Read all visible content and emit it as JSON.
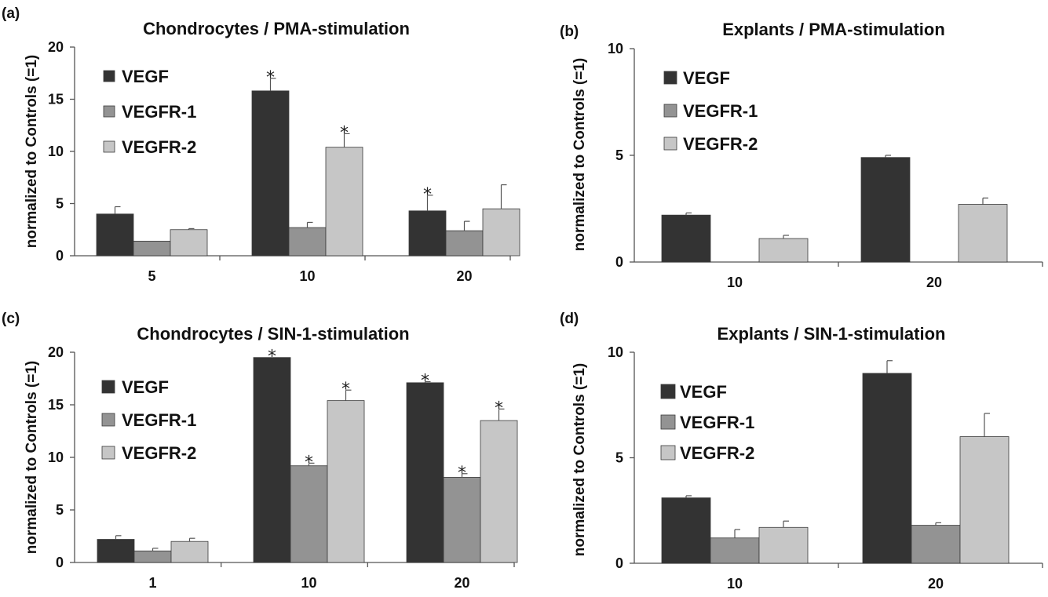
{
  "colors": {
    "VEGF": "#333333",
    "VEGFR-1": "#939393",
    "VEGFR-2": "#c6c6c6",
    "axis": "#555555"
  },
  "chart_data": [
    {
      "type": "bar",
      "panel_label": "(a)",
      "title": "Chondrocytes / PMA-stimulation",
      "xlabel": "",
      "ylabel": "normalized to Controls (=1)",
      "ylim": [
        0,
        20
      ],
      "yticks": [
        0,
        5,
        10,
        15,
        20
      ],
      "categories": [
        "5",
        "10",
        "20"
      ],
      "legend": [
        "VEGF",
        "VEGFR-1",
        "VEGFR-2"
      ],
      "legend_position": "top-left",
      "series": [
        {
          "name": "VEGF",
          "values": [
            4.0,
            15.8,
            4.3
          ],
          "errors": [
            0.7,
            1.2,
            1.5
          ],
          "significant": [
            false,
            true,
            true
          ]
        },
        {
          "name": "VEGFR-1",
          "values": [
            1.4,
            2.7,
            2.4
          ],
          "errors": [
            0.0,
            0.5,
            0.9
          ],
          "significant": [
            false,
            false,
            false
          ]
        },
        {
          "name": "VEGFR-2",
          "values": [
            2.5,
            10.4,
            4.5
          ],
          "errors": [
            0.1,
            1.3,
            2.3
          ],
          "significant": [
            false,
            true,
            false
          ]
        }
      ]
    },
    {
      "type": "bar",
      "panel_label": "(b)",
      "title": "Explants / PMA-stimulation",
      "xlabel": "",
      "ylabel": "normalized to Controls (=1)",
      "ylim": [
        0,
        10
      ],
      "yticks": [
        0,
        5,
        10
      ],
      "categories": [
        "10",
        "20"
      ],
      "legend": [
        "VEGF",
        "VEGFR-1",
        "VEGFR-2"
      ],
      "legend_position": "top-left",
      "series": [
        {
          "name": "VEGF",
          "values": [
            2.2,
            4.9
          ],
          "errors": [
            0.1,
            0.1
          ],
          "significant": [
            false,
            false
          ]
        },
        {
          "name": "VEGFR-1",
          "values": [
            0,
            0
          ],
          "errors": [
            0,
            0
          ],
          "significant": [
            false,
            false
          ]
        },
        {
          "name": "VEGFR-2",
          "values": [
            1.1,
            2.7
          ],
          "errors": [
            0.15,
            0.3
          ],
          "significant": [
            false,
            false
          ]
        }
      ]
    },
    {
      "type": "bar",
      "panel_label": "(c)",
      "title": "Chondrocytes / SIN-1-stimulation",
      "xlabel": "",
      "ylabel": "normalized to Controls (=1)",
      "ylim": [
        0,
        20
      ],
      "yticks": [
        0,
        5,
        10,
        15,
        20
      ],
      "categories": [
        "1",
        "10",
        "20"
      ],
      "legend": [
        "VEGF",
        "VEGFR-1",
        "VEGFR-2"
      ],
      "legend_position": "top-left",
      "series": [
        {
          "name": "VEGF",
          "values": [
            2.2,
            19.5,
            17.1
          ],
          "errors": [
            0.35,
            0.0,
            0.1
          ],
          "significant": [
            false,
            true,
            true
          ]
        },
        {
          "name": "VEGFR-1",
          "values": [
            1.1,
            9.2,
            8.1
          ],
          "errors": [
            0.25,
            0.25,
            0.35
          ],
          "significant": [
            false,
            true,
            true
          ]
        },
        {
          "name": "VEGFR-2",
          "values": [
            2.0,
            15.4,
            13.5
          ],
          "errors": [
            0.3,
            1.0,
            1.1
          ],
          "significant": [
            false,
            true,
            true
          ]
        }
      ]
    },
    {
      "type": "bar",
      "panel_label": "(d)",
      "title": "Explants / SIN-1-stimulation",
      "xlabel": "",
      "ylabel": "normalized to Controls (=1)",
      "ylim": [
        0,
        10
      ],
      "yticks": [
        0,
        5,
        10
      ],
      "categories": [
        "10",
        "20"
      ],
      "legend": [
        "VEGF",
        "VEGFR-1",
        "VEGFR-2"
      ],
      "legend_position": "top-left",
      "series": [
        {
          "name": "VEGF",
          "values": [
            3.1,
            9.0
          ],
          "errors": [
            0.1,
            0.6
          ],
          "significant": [
            false,
            false
          ]
        },
        {
          "name": "VEGFR-1",
          "values": [
            1.2,
            1.8
          ],
          "errors": [
            0.4,
            0.12
          ],
          "significant": [
            false,
            false
          ]
        },
        {
          "name": "VEGFR-2",
          "values": [
            1.7,
            6.0
          ],
          "errors": [
            0.3,
            1.1
          ],
          "significant": [
            false,
            false
          ]
        }
      ]
    }
  ]
}
